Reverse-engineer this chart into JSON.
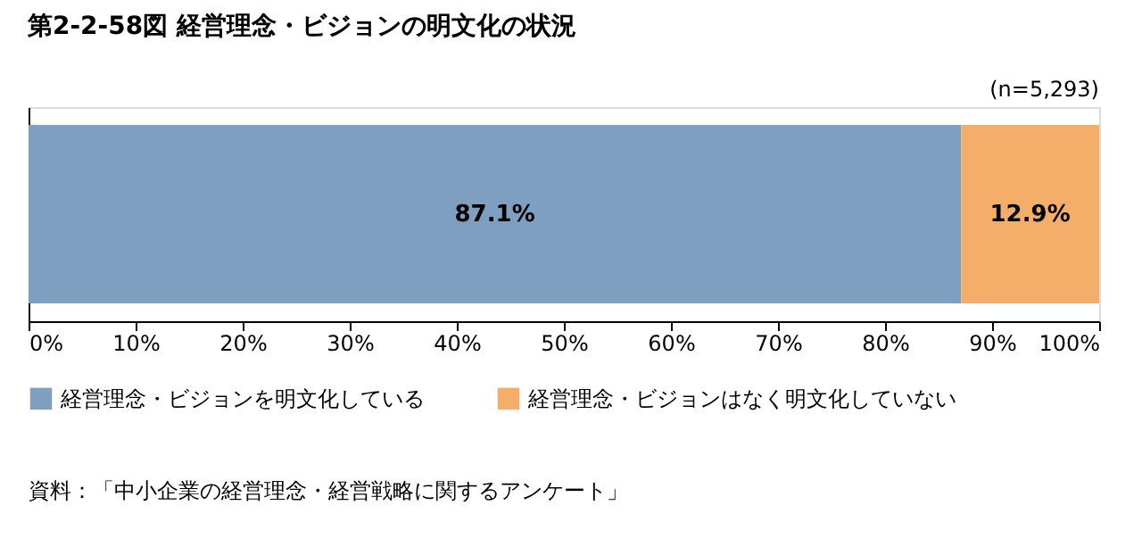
{
  "chart_data": {
    "type": "bar",
    "orientation": "horizontal",
    "stacked": true,
    "title": "第2-2-58図 経営理念・ビジョンの明文化の状況",
    "categories": [
      null
    ],
    "series": [
      {
        "name": "経営理念・ビジョンを明文化している",
        "color": "#7f9fc1",
        "values": [
          87.1
        ],
        "value_labels": [
          "87.1%"
        ]
      },
      {
        "name": "経営理念・ビジョンはなく明文化していない",
        "color": "#f5ae6a",
        "values": [
          12.9
        ],
        "value_labels": [
          "12.9%"
        ]
      }
    ],
    "xlim": [
      0,
      100
    ],
    "xticks": [
      {
        "value": 0,
        "label": "0%"
      },
      {
        "value": 10,
        "label": "10%"
      },
      {
        "value": 20,
        "label": "20%"
      },
      {
        "value": 30,
        "label": "30%"
      },
      {
        "value": 40,
        "label": "40%"
      },
      {
        "value": 50,
        "label": "50%"
      },
      {
        "value": 60,
        "label": "60%"
      },
      {
        "value": 70,
        "label": "70%"
      },
      {
        "value": 80,
        "label": "80%"
      },
      {
        "value": 90,
        "label": "90%"
      },
      {
        "value": 100,
        "label": "100%"
      }
    ],
    "legend": "bottom",
    "grid": false,
    "annotations": [
      "(n=5,293)",
      "資料：「中小企業の経営理念・経営戦略に関するアンケート」"
    ]
  }
}
